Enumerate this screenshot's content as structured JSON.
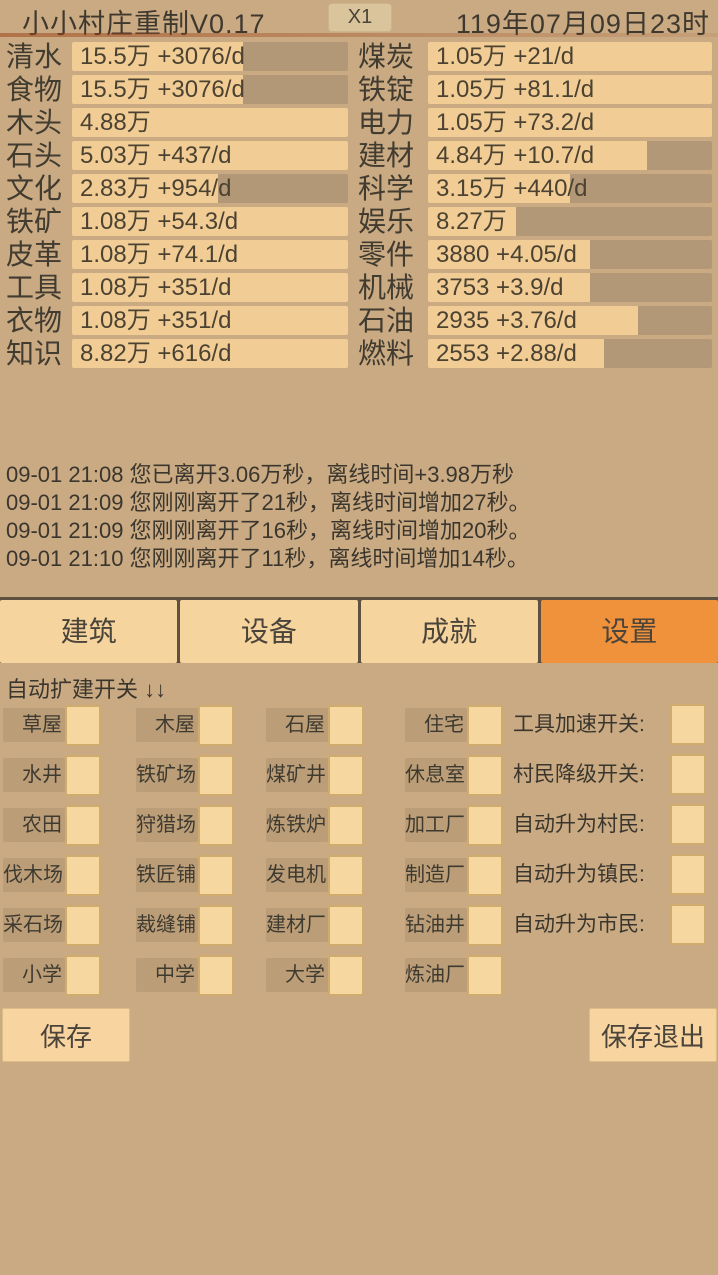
{
  "header": {
    "title": "小小村庄重制V0.17",
    "speed_button_label": "X1",
    "game_date": "119年07月09日23时"
  },
  "resources": {
    "left": [
      {
        "name": "清水",
        "value": "15.5万 +3076/d",
        "fill_pct": 62
      },
      {
        "name": "食物",
        "value": "15.5万 +3076/d",
        "fill_pct": 62
      },
      {
        "name": "木头",
        "value": "4.88万",
        "fill_pct": 100
      },
      {
        "name": "石头",
        "value": "5.03万 +437/d",
        "fill_pct": 100
      },
      {
        "name": "文化",
        "value": "2.83万 +954/d",
        "fill_pct": 53
      },
      {
        "name": "铁矿",
        "value": "1.08万 +54.3/d",
        "fill_pct": 100
      },
      {
        "name": "皮革",
        "value": "1.08万 +74.1/d",
        "fill_pct": 100
      },
      {
        "name": "工具",
        "value": "1.08万 +351/d",
        "fill_pct": 100
      },
      {
        "name": "衣物",
        "value": "1.08万 +351/d",
        "fill_pct": 100
      },
      {
        "name": "知识",
        "value": "8.82万 +616/d",
        "fill_pct": 100
      }
    ],
    "right": [
      {
        "name": "煤炭",
        "value": "1.05万 +21/d",
        "fill_pct": 100
      },
      {
        "name": "铁锭",
        "value": "1.05万 +81.1/d",
        "fill_pct": 100
      },
      {
        "name": "电力",
        "value": "1.05万 +73.2/d",
        "fill_pct": 100
      },
      {
        "name": "建材",
        "value": "4.84万 +10.7/d",
        "fill_pct": 77
      },
      {
        "name": "科学",
        "value": "3.15万 +440/d",
        "fill_pct": 50
      },
      {
        "name": "娱乐",
        "value": "8.27万",
        "fill_pct": 31
      },
      {
        "name": "零件",
        "value": "3880 +4.05/d",
        "fill_pct": 57
      },
      {
        "name": "机械",
        "value": "3753 +3.9/d",
        "fill_pct": 57
      },
      {
        "name": "石油",
        "value": "2935 +3.76/d",
        "fill_pct": 74
      },
      {
        "name": "燃料",
        "value": "2553 +2.88/d",
        "fill_pct": 62
      }
    ]
  },
  "logs": [
    "09-01 21:08 您已离开3.06万秒，离线时间+3.98万秒",
    "09-01 21:09 您刚刚离开了21秒，离线时间增加27秒。",
    "09-01 21:09 您刚刚离开了16秒，离线时间增加20秒。",
    "09-01 21:10 您刚刚离开了11秒，离线时间增加14秒。"
  ],
  "tabs": {
    "items": [
      {
        "label": "建筑",
        "active": false
      },
      {
        "label": "设备",
        "active": false
      },
      {
        "label": "成就",
        "active": false
      },
      {
        "label": "设置",
        "active": true
      }
    ]
  },
  "settings": {
    "section_label": "自动扩建开关 ↓↓",
    "rows": [
      {
        "buildings": [
          "草屋",
          "木屋",
          "石屋",
          "住宅"
        ],
        "option": "工具加速开关:"
      },
      {
        "buildings": [
          "水井",
          "铁矿场",
          "煤矿井",
          "休息室"
        ],
        "option": "村民降级开关:"
      },
      {
        "buildings": [
          "农田",
          "狩猎场",
          "炼铁炉",
          "加工厂"
        ],
        "option": "自动升为村民:"
      },
      {
        "buildings": [
          "伐木场",
          "铁匠铺",
          "发电机",
          "制造厂"
        ],
        "option": "自动升为镇民:"
      },
      {
        "buildings": [
          "采石场",
          "裁缝铺",
          "建材厂",
          "钻油井"
        ],
        "option": "自动升为市民:"
      },
      {
        "buildings": [
          "小学",
          "中学",
          "大学",
          "炼油厂"
        ],
        "option": null
      }
    ],
    "checkbox_states": "all-unchecked"
  },
  "footer": {
    "save_label": "保存",
    "save_exit_label": "保存退出"
  },
  "colors": {
    "background": "#c9aa83",
    "bar_fill": "#f1cd95",
    "bar_empty": "#b39878",
    "tab_active": "#f0913c",
    "tab_inactive": "#f6d49e",
    "checkbox_fill": "#f6d7a0",
    "text": "#3e382e"
  }
}
